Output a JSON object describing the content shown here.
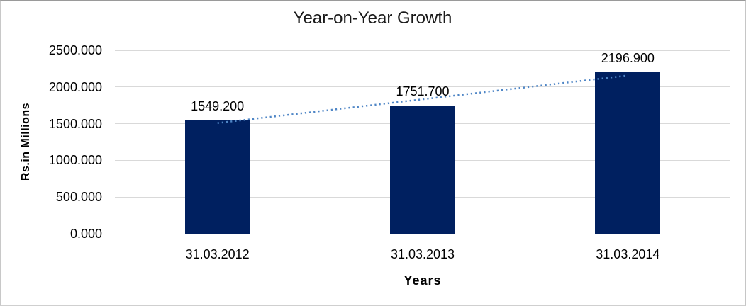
{
  "chart_data": {
    "type": "bar",
    "title": "Year-on-Year Growth",
    "xlabel": "Years",
    "ylabel": "Rs.in Millions",
    "categories": [
      "31.03.2012",
      "31.03.2013",
      "31.03.2014"
    ],
    "values": [
      1549.2,
      1751.7,
      2196.9
    ],
    "data_labels": [
      "1549.200",
      "1751.700",
      "2196.900"
    ],
    "ylim": [
      0,
      2500
    ],
    "ytick_step": 500,
    "ytick_labels": [
      "0.000",
      "500.000",
      "1000.000",
      "1500.000",
      "2000.000",
      "2500.000"
    ],
    "grid": true,
    "legend": "none",
    "trendline": {
      "style": "dotted",
      "fit": "linear",
      "color": "#4f86c6"
    },
    "colors": {
      "bar": "#002060",
      "gridline": "#d9d9d9",
      "text": "#000000",
      "frame": "#9a9a9a"
    }
  }
}
